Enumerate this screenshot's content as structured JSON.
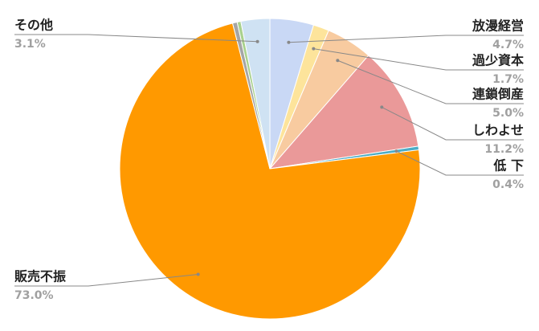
{
  "chart_data": {
    "type": "pie",
    "categories": [
      "放漫経営",
      "過少資本",
      "連鎖倒産",
      "しわよせ",
      "低 下",
      "販売不振",
      null,
      null,
      "その他"
    ],
    "values": [
      4.7,
      1.7,
      5.0,
      11.2,
      0.4,
      73.0,
      0.5,
      0.4,
      3.1
    ],
    "value_labels": [
      "4.7%",
      "1.7%",
      "5.0%",
      "11.2%",
      "0.4%",
      "73.0%",
      null,
      null,
      "3.1%"
    ],
    "colors": [
      "#c9d8f5",
      "#fde49b",
      "#f8cba0",
      "#ea9999",
      "#4bacc6",
      "#ff9900",
      "#a5a5a5",
      "#a9d18e",
      "#cfe2f3"
    ]
  }
}
